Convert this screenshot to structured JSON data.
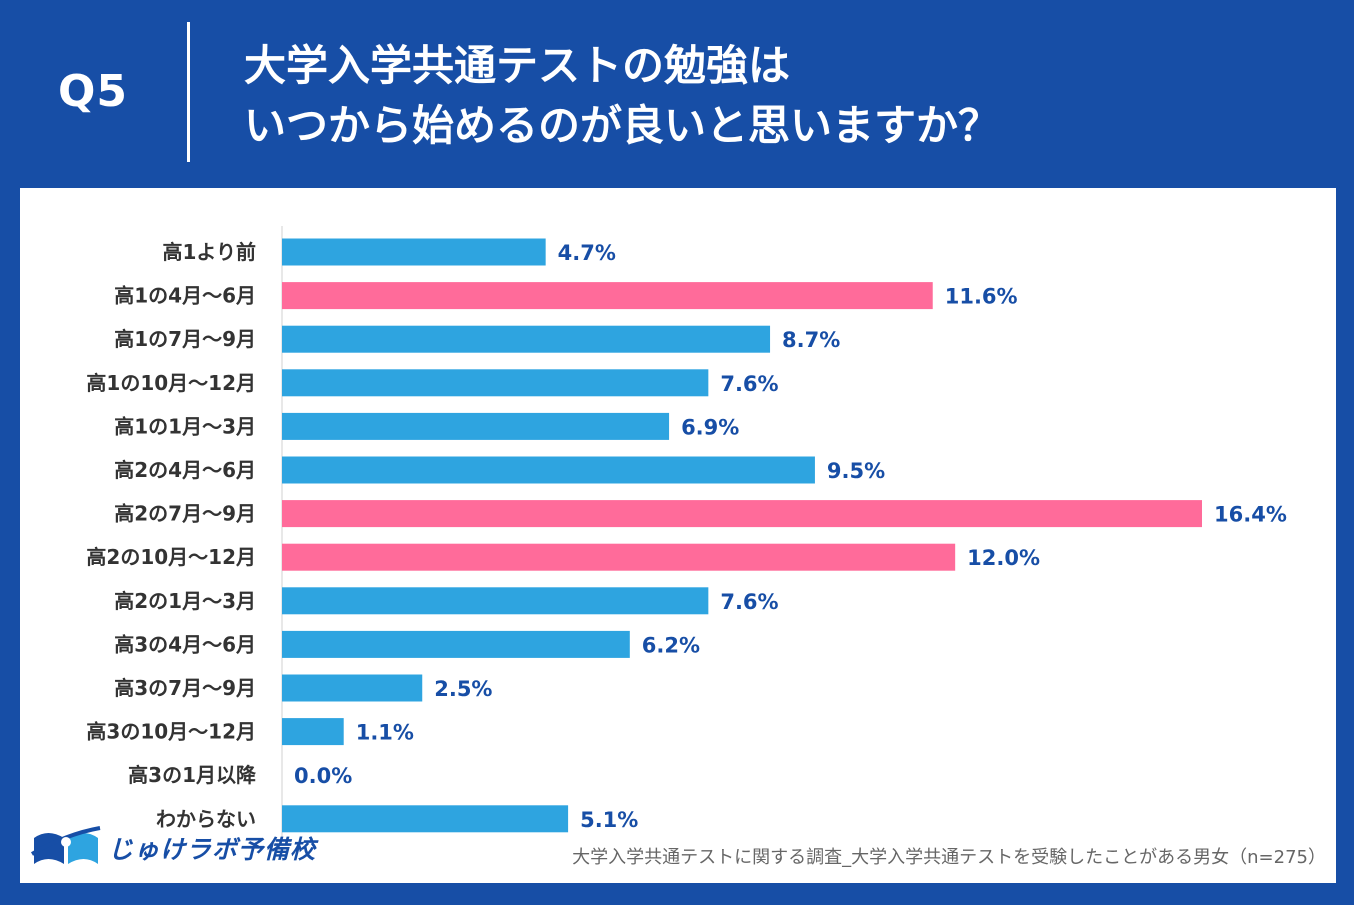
{
  "header": {
    "question_no": "Q5",
    "title_line1": "大学入学共通テストの勉強は",
    "title_line2": "いつから始めるのが良いと思いますか？"
  },
  "footer": {
    "logo_text": "じゅけラボ予備校",
    "source": "大学入学共通テストに関する調査_大学入学共通テストを受験したことがある男女（n=275）"
  },
  "colors": {
    "background": "#174ea6",
    "bar_default": "#2ea4e0",
    "bar_highlight": "#ff6b9a",
    "value_label": "#174ea6",
    "category_label": "#333333"
  },
  "chart_data": {
    "type": "bar",
    "orientation": "horizontal",
    "title": "",
    "xlabel": "",
    "ylabel": "",
    "xlim": [
      0,
      16.4
    ],
    "grid": false,
    "categories": [
      "高1より前",
      "高1の4月～6月",
      "高1の7月～9月",
      "高1の10月～12月",
      "高1の1月～3月",
      "高2の4月～6月",
      "高2の7月～9月",
      "高2の10月～12月",
      "高2の1月～3月",
      "高3の4月～6月",
      "高3の7月～9月",
      "高3の10月～12月",
      "高3の1月以降",
      "わからない"
    ],
    "values": [
      4.7,
      11.6,
      8.7,
      7.6,
      6.9,
      9.5,
      16.4,
      12.0,
      7.6,
      6.2,
      2.5,
      1.1,
      0.0,
      5.1
    ],
    "labels": [
      "4.7%",
      "11.6%",
      "8.7%",
      "7.6%",
      "6.9%",
      "9.5%",
      "16.4%",
      "12.0%",
      "7.6%",
      "6.2%",
      "2.5%",
      "1.1%",
      "0.0%",
      "5.1%"
    ],
    "highlighted": [
      false,
      true,
      false,
      false,
      false,
      false,
      true,
      true,
      false,
      false,
      false,
      false,
      false,
      false
    ]
  }
}
